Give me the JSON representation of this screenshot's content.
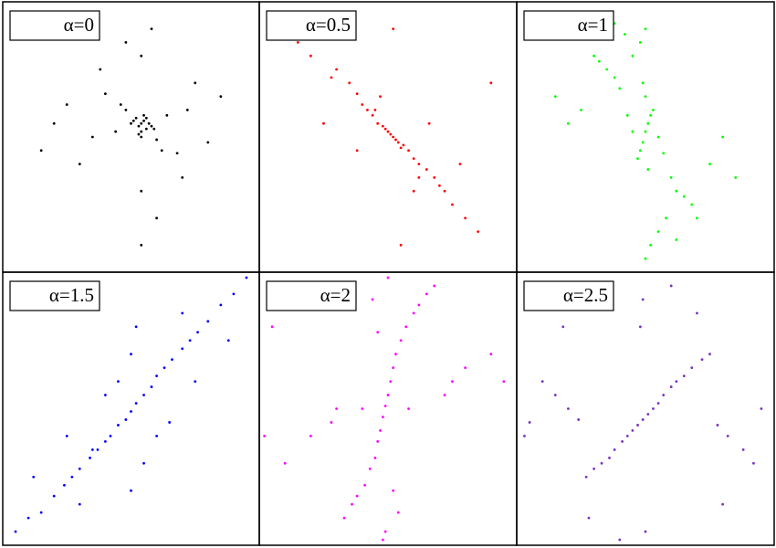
{
  "chart_data": [
    {
      "type": "scatter",
      "title": "α=0",
      "color": "#000000",
      "xlim": [
        0,
        100
      ],
      "ylim": [
        0,
        100
      ],
      "x": [
        54,
        55,
        53,
        56,
        52,
        57,
        54,
        51,
        58,
        55,
        53,
        56,
        50,
        59,
        54,
        48,
        60,
        46,
        62,
        44,
        64,
        40,
        68,
        35,
        72,
        30,
        75,
        25,
        80,
        20,
        54,
        54,
        70,
        38,
        60,
        48,
        85,
        15,
        54,
        58
      ],
      "y": [
        55,
        56,
        54,
        53,
        57,
        55,
        52,
        56,
        54,
        58,
        51,
        57,
        55,
        53,
        50,
        60,
        49,
        62,
        45,
        52,
        58,
        66,
        44,
        50,
        60,
        40,
        70,
        62,
        48,
        55,
        80,
        30,
        35,
        75,
        20,
        85,
        65,
        45,
        10,
        90
      ]
    },
    {
      "type": "scatter",
      "title": "α=0.5",
      "color": "#ff0000",
      "xlim": [
        0,
        100
      ],
      "ylim": [
        0,
        100
      ],
      "x": [
        50,
        52,
        54,
        48,
        56,
        46,
        58,
        51,
        53,
        49,
        55,
        44,
        60,
        42,
        62,
        40,
        65,
        38,
        68,
        35,
        70,
        30,
        72,
        28,
        75,
        20,
        80,
        15,
        85,
        52,
        55,
        47,
        60,
        45,
        62,
        38,
        66,
        25,
        78,
        90
      ],
      "y": [
        52,
        50,
        48,
        54,
        47,
        55,
        45,
        51,
        49,
        53,
        46,
        58,
        42,
        60,
        40,
        62,
        38,
        66,
        35,
        70,
        32,
        75,
        30,
        72,
        25,
        80,
        20,
        85,
        15,
        90,
        10,
        65,
        30,
        60,
        35,
        45,
        55,
        55,
        40,
        70
      ]
    },
    {
      "type": "scatter",
      "title": "α=1",
      "color": "#00ff00",
      "xlim": [
        0,
        100
      ],
      "ylim": [
        0,
        100
      ],
      "x": [
        50,
        51,
        49,
        52,
        48,
        53,
        47,
        50,
        51,
        49,
        55,
        45,
        57,
        43,
        60,
        40,
        62,
        38,
        65,
        35,
        68,
        32,
        70,
        30,
        75,
        25,
        80,
        20,
        50,
        52,
        48,
        55,
        45,
        58,
        42,
        62,
        38,
        85,
        15,
        50
      ],
      "y": [
        52,
        55,
        48,
        58,
        45,
        60,
        42,
        65,
        38,
        70,
        50,
        52,
        44,
        58,
        35,
        68,
        30,
        72,
        28,
        75,
        25,
        78,
        20,
        80,
        40,
        60,
        50,
        55,
        90,
        10,
        85,
        15,
        80,
        20,
        88,
        12,
        92,
        35,
        65,
        5
      ]
    },
    {
      "type": "scatter",
      "title": "α=1.5",
      "color": "#0000ff",
      "xlim": [
        0,
        100
      ],
      "ylim": [
        0,
        100
      ],
      "x": [
        50,
        52,
        48,
        55,
        45,
        58,
        42,
        60,
        40,
        63,
        37,
        66,
        34,
        70,
        30,
        73,
        27,
        76,
        24,
        80,
        20,
        85,
        15,
        90,
        10,
        95,
        5,
        50,
        55,
        45,
        60,
        40,
        65,
        35,
        75,
        25,
        88,
        12,
        70,
        30,
        50,
        52
      ],
      "y": [
        49,
        52,
        46,
        55,
        44,
        58,
        40,
        62,
        38,
        65,
        35,
        68,
        32,
        72,
        28,
        75,
        25,
        78,
        22,
        82,
        18,
        88,
        12,
        92,
        10,
        98,
        5,
        70,
        30,
        60,
        40,
        55,
        45,
        35,
        60,
        40,
        75,
        25,
        85,
        15,
        20,
        80
      ]
    },
    {
      "type": "scatter",
      "title": "α=2",
      "color": "#ff00ff",
      "xlim": [
        0,
        100
      ],
      "ylim": [
        0,
        100
      ],
      "x": [
        49,
        50,
        48,
        51,
        47,
        52,
        46,
        53,
        45,
        55,
        43,
        57,
        41,
        60,
        38,
        62,
        36,
        65,
        33,
        68,
        30,
        72,
        28,
        75,
        20,
        80,
        10,
        90,
        5,
        49,
        50,
        48,
        52,
        46,
        54,
        44,
        58,
        40,
        95,
        2
      ],
      "y": [
        51,
        55,
        47,
        60,
        42,
        65,
        38,
        70,
        32,
        75,
        28,
        80,
        22,
        85,
        18,
        88,
        15,
        92,
        10,
        95,
        50,
        55,
        45,
        60,
        40,
        65,
        30,
        70,
        80,
        5,
        98,
        2,
        20,
        78,
        12,
        90,
        50,
        50,
        60,
        40
      ]
    },
    {
      "type": "scatter",
      "title": "α=2.5",
      "color": "#7b2fbe",
      "xlim": [
        0,
        100
      ],
      "ylim": [
        0,
        100
      ],
      "x": [
        49,
        51,
        47,
        53,
        45,
        55,
        43,
        57,
        41,
        60,
        38,
        62,
        36,
        65,
        33,
        68,
        30,
        72,
        27,
        75,
        24,
        78,
        20,
        82,
        15,
        88,
        10,
        92,
        5,
        49,
        50,
        48,
        70,
        28,
        80,
        18,
        60,
        40,
        95,
        3
      ],
      "y": [
        46,
        48,
        44,
        50,
        42,
        52,
        40,
        55,
        38,
        58,
        35,
        60,
        32,
        62,
        30,
        65,
        28,
        68,
        25,
        70,
        46,
        44,
        50,
        40,
        55,
        35,
        60,
        30,
        45,
        90,
        5,
        80,
        85,
        10,
        15,
        80,
        95,
        2,
        50,
        40
      ]
    }
  ]
}
